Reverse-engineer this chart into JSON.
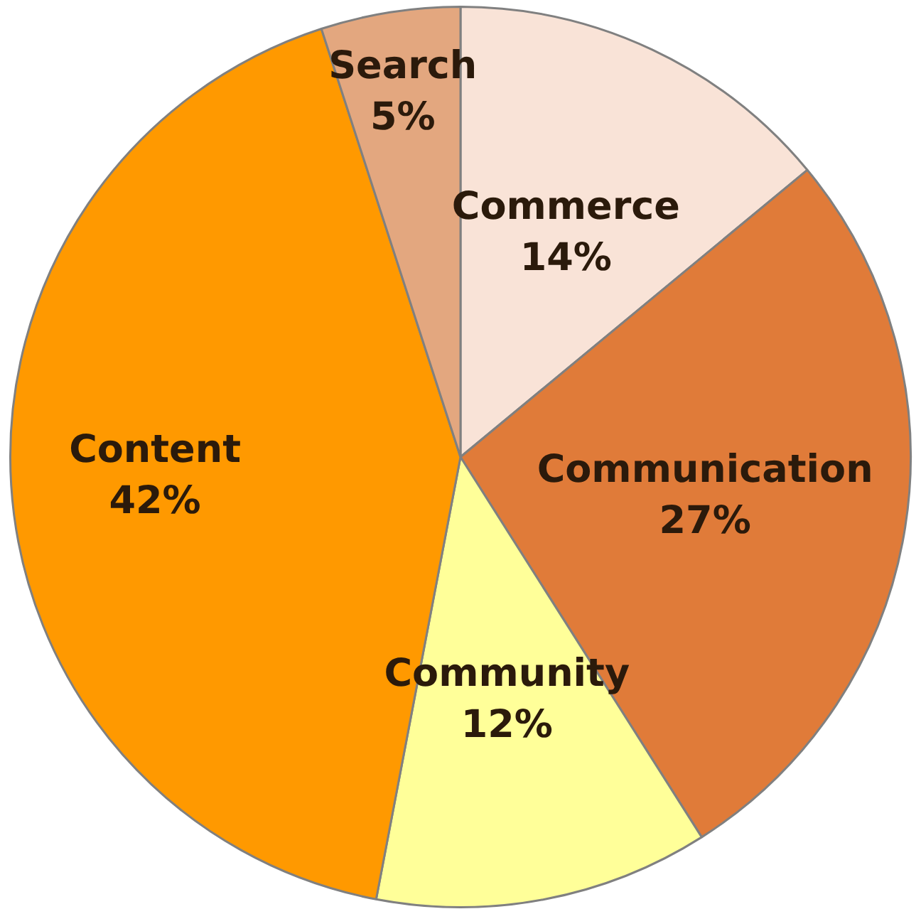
{
  "chart_data": {
    "type": "pie",
    "categories": [
      "Commerce",
      "Communication",
      "Community",
      "Content",
      "Search"
    ],
    "values": [
      14,
      27,
      12,
      42,
      5
    ],
    "colors": [
      "#f9e3d7",
      "#e07b39",
      "#ffff99",
      "#ff9900",
      "#e3a77f"
    ],
    "value_labels": [
      "14%",
      "27%",
      "12%",
      "42%",
      "5%"
    ],
    "legend": false
  }
}
